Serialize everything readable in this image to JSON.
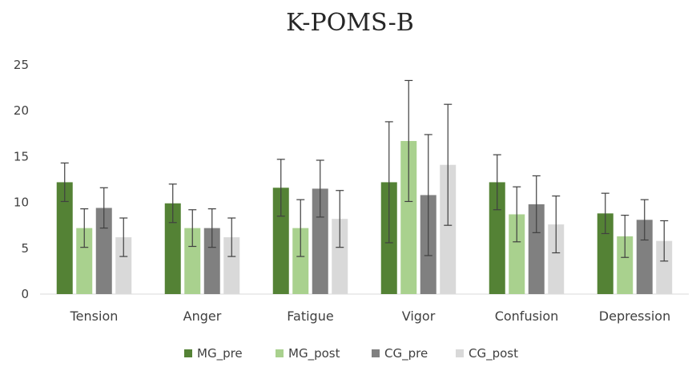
{
  "chart_data": {
    "type": "bar",
    "title": "K-POMS-B",
    "xlabel": "",
    "ylabel": "",
    "ylim": [
      0,
      25
    ],
    "yticks": [
      0,
      5,
      10,
      15,
      20,
      25
    ],
    "grid": false,
    "legend": "bottom",
    "categories": [
      "Tension",
      "Anger",
      "Fatigue",
      "Vigor",
      "Confusion",
      "Depression"
    ],
    "series": [
      {
        "name": "MG_pre",
        "color": "#548235",
        "values": [
          12.2,
          9.9,
          11.6,
          12.2,
          12.2,
          8.8
        ],
        "errors": [
          2.1,
          2.1,
          3.1,
          6.6,
          3.0,
          2.2
        ]
      },
      {
        "name": "MG_post",
        "color": "#a9d18e",
        "values": [
          7.2,
          7.2,
          7.2,
          16.7,
          8.7,
          6.3
        ],
        "errors": [
          2.1,
          2.0,
          3.1,
          6.6,
          3.0,
          2.3
        ]
      },
      {
        "name": "CG_pre",
        "color": "#808080",
        "values": [
          9.4,
          7.2,
          11.5,
          10.8,
          9.8,
          8.1
        ],
        "errors": [
          2.2,
          2.1,
          3.1,
          6.6,
          3.1,
          2.2
        ]
      },
      {
        "name": "CG_post",
        "color": "#d9d9d9",
        "values": [
          6.2,
          6.2,
          8.2,
          14.1,
          7.6,
          5.8
        ],
        "errors": [
          2.1,
          2.1,
          3.1,
          6.6,
          3.1,
          2.2
        ]
      }
    ]
  }
}
